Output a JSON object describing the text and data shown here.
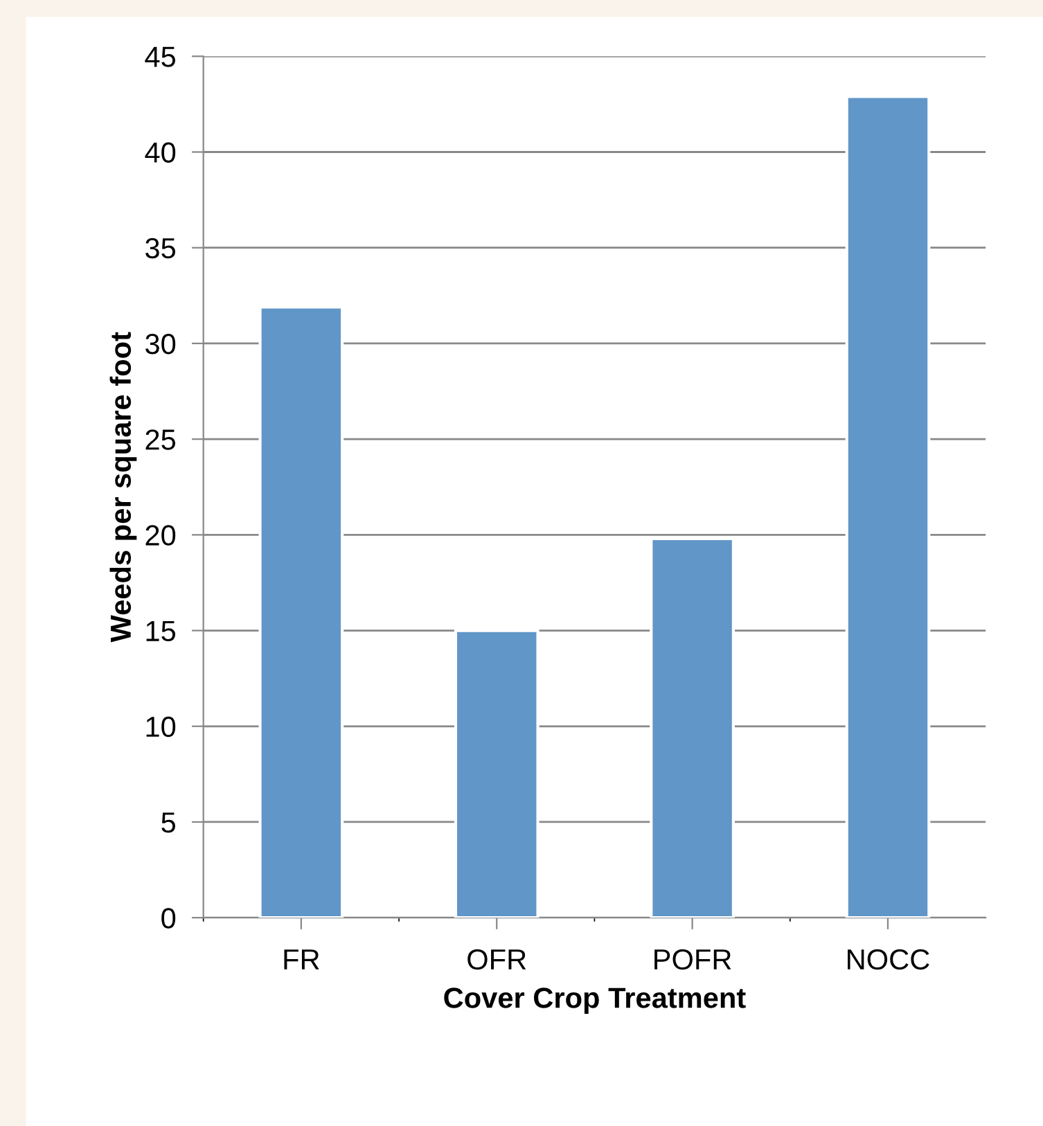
{
  "chart_data": {
    "type": "bar",
    "xlabel": "Cover Crop Treatment",
    "ylabel": "Weeds per square foot",
    "categories": [
      "FR",
      "OFR",
      "POFR",
      "NOCC"
    ],
    "values": [
      31.9,
      15,
      19.8,
      42.9
    ],
    "color": "#6096c8",
    "ylim": [
      0,
      45
    ],
    "yticks": [
      0,
      5,
      10,
      15,
      20,
      25,
      30,
      35,
      40,
      45
    ],
    "grid": "y"
  }
}
